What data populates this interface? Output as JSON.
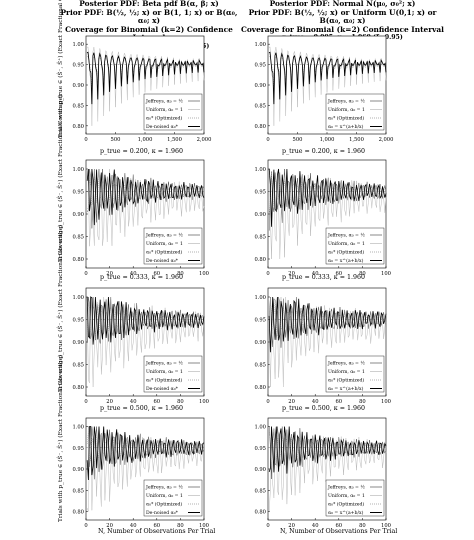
{
  "header": {
    "left": {
      "line1": "Posterior PDF: Beta pdf B(α, β; x)",
      "line2": "Prior PDF: B(½, ½; x) or B(1, 1; x) or B(α₀, α₀; x)",
      "line3": "Coverage for Binomial (k=2) Confidence Interval",
      "param": "p_true = 0.005,   κ = 1.960   (ξ=0.95)"
    },
    "right": {
      "line1": "Posterior PDF: Normal N(μ₀, σ₀²; x)",
      "line2": "Prior PDF: B(½, ½; x) or Uniform U(0,1; x) or B(α₀, α₀; x)",
      "line3": "Coverage for Binomial (k=2) Confidence Interval",
      "param": "p_true = 0.005,   κ = 1.960   (ξ=0.95)"
    }
  },
  "rows_params": [
    "p_true  =  0.200,  κ  =  1.960",
    "p_true  =  0.333,  κ  =  1.960",
    "p_true  =  0.500,  κ  =  1.960"
  ],
  "ylabel": "Trials with p_true ∈ (Ŝ⁻, Ŝ⁺) (Exact Fractional Coverage)",
  "xlabel_left": "N, Number of Observations Per Trial",
  "xlabel_right": "N, Number of Observations Per Trial",
  "legend_left": [
    "Jeffreys, α₀ = ½",
    "Uniform, α₀ = 1",
    "α₀* (Optimized)",
    "De-noised α₀*"
  ],
  "legend_right": [
    "Jeffreys, α₀ = ½",
    "Uniform, α₀ = 1",
    "α₀* (Optimized)",
    "α₀ = x^(a+b/x)"
  ],
  "chart_data": [
    {
      "type": "line",
      "panel": "row1-left",
      "ylim": [
        0.78,
        1.02
      ],
      "xlim": [
        0,
        2000
      ],
      "x_ticks": [
        0,
        500,
        1000,
        1500,
        2000
      ],
      "y_ticks": [
        0.8,
        0.85,
        0.9,
        0.95,
        1.0
      ],
      "reference": 0.95,
      "legend": "bottom-right"
    },
    {
      "type": "line",
      "panel": "row1-right",
      "ylim": [
        0.78,
        1.02
      ],
      "xlim": [
        0,
        2000
      ],
      "x_ticks": [
        0,
        500,
        1000,
        1500,
        2000
      ],
      "y_ticks": [
        0.8,
        0.85,
        0.9,
        0.95,
        1.0
      ],
      "reference": 0.95,
      "legend": "bottom-right"
    },
    {
      "type": "line",
      "panel": "row2-left",
      "ylim": [
        0.78,
        1.02
      ],
      "xlim": [
        0,
        100
      ],
      "x_ticks": [
        0,
        20,
        40,
        60,
        80,
        100
      ],
      "y_ticks": [
        0.8,
        0.85,
        0.9,
        0.95,
        1.0
      ],
      "reference": 0.95,
      "legend": "bottom-right"
    },
    {
      "type": "line",
      "panel": "row2-right",
      "ylim": [
        0.78,
        1.02
      ],
      "xlim": [
        0,
        100
      ],
      "x_ticks": [
        0,
        20,
        40,
        60,
        80,
        100
      ],
      "y_ticks": [
        0.8,
        0.85,
        0.9,
        0.95,
        1.0
      ],
      "reference": 0.95,
      "legend": "bottom-right"
    },
    {
      "type": "line",
      "panel": "row3-left",
      "ylim": [
        0.78,
        1.02
      ],
      "xlim": [
        0,
        100
      ],
      "x_ticks": [
        0,
        20,
        40,
        60,
        80,
        100
      ],
      "y_ticks": [
        0.8,
        0.85,
        0.9,
        0.95,
        1.0
      ],
      "reference": 0.95,
      "legend": "bottom-right"
    },
    {
      "type": "line",
      "panel": "row3-right",
      "ylim": [
        0.78,
        1.02
      ],
      "xlim": [
        0,
        100
      ],
      "x_ticks": [
        0,
        20,
        40,
        60,
        80,
        100
      ],
      "y_ticks": [
        0.8,
        0.85,
        0.9,
        0.95,
        1.0
      ],
      "reference": 0.95,
      "legend": "bottom-right"
    },
    {
      "type": "line",
      "panel": "row4-left",
      "ylim": [
        0.78,
        1.02
      ],
      "xlim": [
        0,
        100
      ],
      "x_ticks": [
        0,
        20,
        40,
        60,
        80,
        100
      ],
      "y_ticks": [
        0.8,
        0.85,
        0.9,
        0.95,
        1.0
      ],
      "reference": 0.95,
      "legend": "bottom-right"
    },
    {
      "type": "line",
      "panel": "row4-right",
      "ylim": [
        0.78,
        1.02
      ],
      "xlim": [
        0,
        100
      ],
      "x_ticks": [
        0,
        20,
        40,
        60,
        80,
        100
      ],
      "y_ticks": [
        0.8,
        0.85,
        0.9,
        0.95,
        1.0
      ],
      "reference": 0.95,
      "legend": "bottom-right"
    }
  ]
}
